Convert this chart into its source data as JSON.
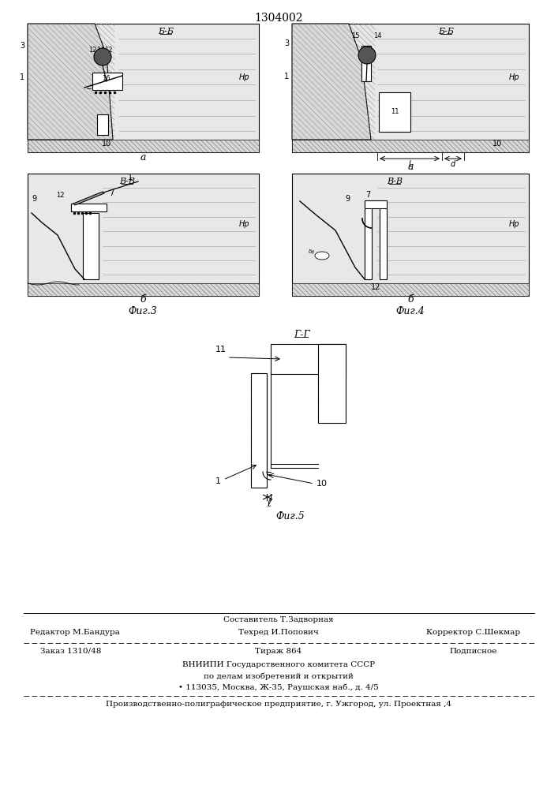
{
  "title": "1304002",
  "section_bb": "Б-Б",
  "section_vv": "В-В",
  "section_gg": "Г-Г",
  "label_a": "а",
  "label_b": "б",
  "fig3_label": "Фиг.3",
  "fig4_label": "Фиг.4",
  "fig5_label": "Фиг.5",
  "footer_comp": "Составитель Т.Задворная",
  "footer_ed": "Редактор М.Бандура",
  "footer_tech": "Техред И.Попович",
  "footer_corr": "Корректор С.Шекмар",
  "footer_order": "Заказ 1310/48",
  "footer_circ": "Тираж 864",
  "footer_sub": "Подписное",
  "footer_org1": "ВНИИПИ Государственного комитета СССР",
  "footer_org2": "по делам изобретений и открытий",
  "footer_addr": "• 113035, Москва, Ж-35, Раушская наб., д. 4/5",
  "footer_plant": "Производственно-полиграфическое предприятие, г. Ужгород, ул. Проектная ,4"
}
